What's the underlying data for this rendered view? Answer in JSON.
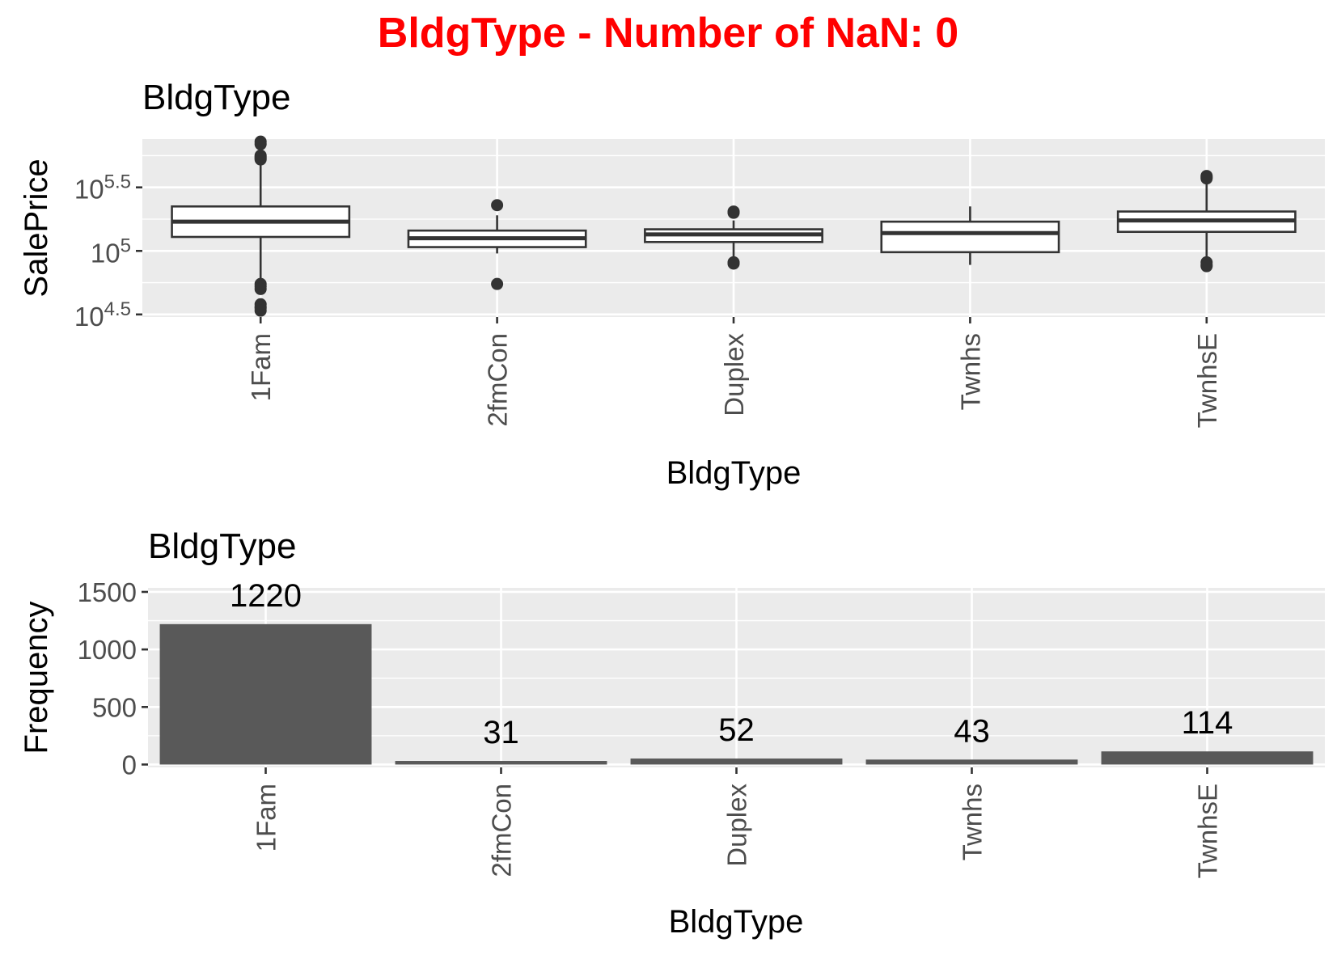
{
  "page_title": "BldgType - Number of NaN: 0",
  "title_color": "#ff0000",
  "panel_bg": "#ebebeb",
  "grid_color": "#ffffff",
  "chart_data": [
    {
      "type": "box",
      "title": "BldgType",
      "xlabel": "BldgType",
      "ylabel": "SalePrice",
      "yscale": "log10",
      "ylim_log10": [
        4.48,
        5.88
      ],
      "y_ticks": [
        {
          "base": "10",
          "exp": "4.5",
          "value": 4.5
        },
        {
          "base": "10",
          "exp": "5",
          "value": 5.0
        },
        {
          "base": "10",
          "exp": "5.5",
          "value": 5.5
        }
      ],
      "categories": [
        "1Fam",
        "2fmCon",
        "Duplex",
        "Twnhs",
        "TwnhsE"
      ],
      "boxes": [
        {
          "category": "1Fam",
          "whisker_low": 4.76,
          "q1": 5.11,
          "median": 5.23,
          "q3": 5.35,
          "whisker_high": 5.71,
          "outliers": [
            5.86,
            5.84,
            5.75,
            5.74,
            5.73,
            5.72,
            4.74,
            4.72,
            4.7,
            4.58,
            4.56,
            4.55,
            4.53
          ]
        },
        {
          "category": "2fmCon",
          "whisker_low": 4.98,
          "q1": 5.03,
          "median": 5.1,
          "q3": 5.16,
          "whisker_high": 5.28,
          "outliers": [
            5.36,
            4.74
          ]
        },
        {
          "category": "Duplex",
          "whisker_low": 4.93,
          "q1": 5.07,
          "median": 5.13,
          "q3": 5.17,
          "whisker_high": 5.24,
          "outliers": [
            5.31,
            5.3,
            4.91,
            4.9
          ]
        },
        {
          "category": "Twnhs",
          "whisker_low": 4.89,
          "q1": 4.99,
          "median": 5.14,
          "q3": 5.23,
          "whisker_high": 5.35,
          "outliers": []
        },
        {
          "category": "TwnhsE",
          "whisker_low": 4.95,
          "q1": 5.15,
          "median": 5.24,
          "q3": 5.31,
          "whisker_high": 5.53,
          "outliers": [
            5.59,
            5.58,
            5.57,
            4.91,
            4.89,
            4.88
          ]
        }
      ],
      "grid": true
    },
    {
      "type": "bar",
      "title": "BldgType",
      "xlabel": "BldgType",
      "ylabel": "Frequency",
      "ylim": [
        -25,
        1535
      ],
      "y_ticks": [
        0,
        500,
        1000,
        1500
      ],
      "categories": [
        "1Fam",
        "2fmCon",
        "Duplex",
        "Twnhs",
        "TwnhsE"
      ],
      "values": [
        1220,
        31,
        52,
        43,
        114
      ],
      "data_labels": [
        "1220",
        "31",
        "52",
        "43",
        "114"
      ],
      "bar_color": "#595959",
      "grid": true
    }
  ]
}
